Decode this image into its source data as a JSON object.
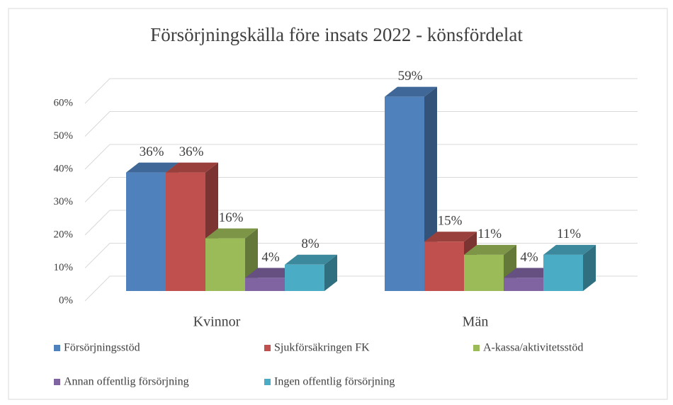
{
  "chart_data": {
    "type": "bar3d",
    "title": "Försörjningskälla före insats 2022 - könsfördelat",
    "categories": [
      "Kvinnor",
      "Män"
    ],
    "series": [
      {
        "name": "Försörjningsstöd",
        "color": "#4f81bd",
        "values": [
          36,
          59
        ],
        "value_labels": [
          "36%",
          "59%"
        ]
      },
      {
        "name": "Sjukförsäkringen FK",
        "color": "#c0504d",
        "values": [
          36,
          15
        ],
        "value_labels": [
          "36%",
          "15%"
        ]
      },
      {
        "name": "A-kassa/aktivitetsstöd",
        "color": "#9bbb59",
        "values": [
          16,
          11
        ],
        "value_labels": [
          "16%",
          "11%"
        ]
      },
      {
        "name": "Annan offentlig försörjning",
        "color": "#8064a2",
        "values": [
          4,
          4
        ],
        "value_labels": [
          "4%",
          "4%"
        ]
      },
      {
        "name": "Ingen offentlig försörjning",
        "color": "#4bacc6",
        "values": [
          8,
          11
        ],
        "value_labels": [
          "8%",
          "11%"
        ]
      }
    ],
    "ylim": [
      0,
      60
    ],
    "yticks": [
      {
        "value": 0,
        "label": "0%"
      },
      {
        "value": 10,
        "label": "10%"
      },
      {
        "value": 20,
        "label": "20%"
      },
      {
        "value": 30,
        "label": "30%"
      },
      {
        "value": 40,
        "label": "40%"
      },
      {
        "value": 50,
        "label": "50%"
      },
      {
        "value": 60,
        "label": "60%"
      }
    ],
    "grid": true,
    "legend": "bottom"
  }
}
